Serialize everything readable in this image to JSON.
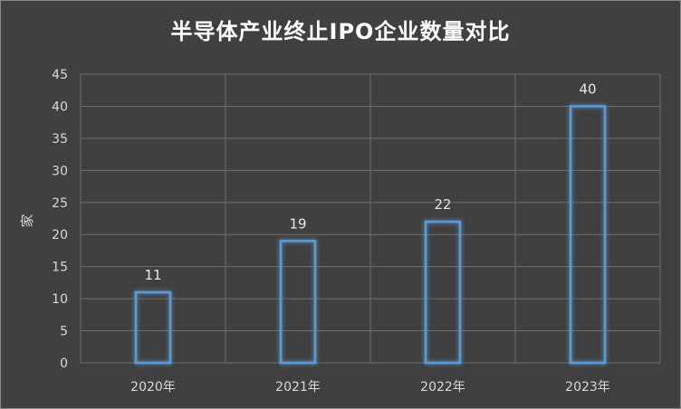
{
  "chart_data": {
    "type": "bar",
    "title": "半导体产业终止IPO企业数量对比",
    "ylabel": "家",
    "xlabel": "",
    "categories": [
      "2020年",
      "2021年",
      "2022年",
      "2023年"
    ],
    "values": [
      11,
      19,
      22,
      40
    ],
    "data_labels": [
      "11",
      "19",
      "22",
      "40"
    ],
    "ylim": [
      0,
      45
    ],
    "yticks": [
      0,
      5,
      10,
      15,
      20,
      25,
      30,
      35,
      40,
      45
    ],
    "ytick_labels": [
      "0",
      "5",
      "10",
      "15",
      "20",
      "25",
      "30",
      "35",
      "40",
      "45"
    ],
    "grid": true,
    "colors": {
      "background": "#404040",
      "bar_stroke": "#5b9bd5",
      "grid": "#6e6e6e",
      "text": "#d9d9d9"
    }
  }
}
